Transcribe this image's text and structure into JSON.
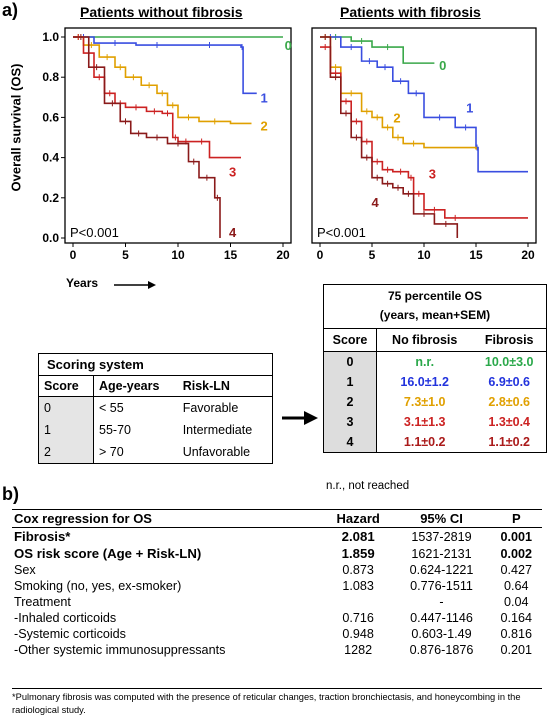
{
  "panel_a": "a)",
  "panel_b": "b)",
  "chart_data": [
    {
      "type": "line",
      "title": "Patients without fibrosis",
      "ylabel": "Overall survival (OS)",
      "xlabel": "Years",
      "xlim": [
        0,
        20
      ],
      "ylim": [
        0,
        1
      ],
      "xticks": [
        "0",
        "5",
        "10",
        "15",
        "20"
      ],
      "yticks": [
        "0.0",
        "0.2",
        "0.4",
        "0.6",
        "0.8",
        "1.0"
      ],
      "annotation": "P<0.001",
      "series": [
        {
          "name": "0",
          "color": "#3aa84a",
          "points": [
            [
              0,
              1.0
            ],
            [
              20,
              1.0
            ]
          ],
          "label_at": [
            20.5,
            0.96
          ]
        },
        {
          "name": "1",
          "color": "#3a4ee0",
          "points": [
            [
              0,
              1.0
            ],
            [
              2,
              0.97
            ],
            [
              6,
              0.96
            ],
            [
              10,
              0.96
            ],
            [
              16,
              0.95
            ],
            [
              16.2,
              0.72
            ],
            [
              17.5,
              0.72
            ]
          ],
          "label_at": [
            18.2,
            0.7
          ]
        },
        {
          "name": "2",
          "color": "#e0a000",
          "points": [
            [
              0,
              1.0
            ],
            [
              1,
              0.96
            ],
            [
              2.5,
              0.9
            ],
            [
              4,
              0.85
            ],
            [
              5,
              0.8
            ],
            [
              6.5,
              0.76
            ],
            [
              8,
              0.72
            ],
            [
              9,
              0.66
            ],
            [
              10,
              0.6
            ],
            [
              12,
              0.58
            ],
            [
              15,
              0.57
            ],
            [
              17,
              0.57
            ]
          ],
          "label_at": [
            18.2,
            0.56
          ]
        },
        {
          "name": "3",
          "color": "#cc2222",
          "points": [
            [
              0,
              1.0
            ],
            [
              1,
              0.92
            ],
            [
              2,
              0.8
            ],
            [
              3,
              0.72
            ],
            [
              4,
              0.67
            ],
            [
              5,
              0.65
            ],
            [
              7,
              0.63
            ],
            [
              8.5,
              0.62
            ],
            [
              9.5,
              0.5
            ],
            [
              10,
              0.48
            ],
            [
              11.5,
              0.48
            ],
            [
              13,
              0.4
            ],
            [
              16,
              0.4
            ]
          ],
          "label_at": [
            15.2,
            0.33
          ]
        },
        {
          "name": "4",
          "color": "#8a1a1a",
          "points": [
            [
              0,
              1.0
            ],
            [
              1.5,
              0.85
            ],
            [
              3,
              0.67
            ],
            [
              4.5,
              0.58
            ],
            [
              5.5,
              0.52
            ],
            [
              7,
              0.5
            ],
            [
              9,
              0.47
            ],
            [
              11,
              0.38
            ],
            [
              12,
              0.3
            ],
            [
              13.5,
              0.2
            ],
            [
              14,
              0.05
            ],
            [
              14,
              0.0
            ]
          ],
          "label_at": [
            15.2,
            0.03
          ]
        }
      ]
    },
    {
      "type": "line",
      "title": "Patients with fibrosis",
      "xlim": [
        0,
        20
      ],
      "ylim": [
        0,
        1
      ],
      "xticks": [
        "0",
        "5",
        "10",
        "15",
        "20"
      ],
      "annotation": "P<0.001",
      "series": [
        {
          "name": "0",
          "color": "#3aa84a",
          "points": [
            [
              0,
              1.0
            ],
            [
              3,
              0.98
            ],
            [
              5,
              0.95
            ],
            [
              8,
              0.87
            ],
            [
              11,
              0.87
            ]
          ],
          "label_at": [
            11.8,
            0.86
          ]
        },
        {
          "name": "1",
          "color": "#3a4ee0",
          "points": [
            [
              0,
              1.0
            ],
            [
              2,
              0.95
            ],
            [
              4,
              0.88
            ],
            [
              5.5,
              0.85
            ],
            [
              7,
              0.78
            ],
            [
              8.5,
              0.72
            ],
            [
              10,
              0.6
            ],
            [
              13,
              0.55
            ],
            [
              15,
              0.45
            ],
            [
              15.2,
              0.33
            ],
            [
              20,
              0.33
            ]
          ],
          "label_at": [
            14.4,
            0.65
          ]
        },
        {
          "name": "2",
          "color": "#e0a000",
          "points": [
            [
              0,
              1.0
            ],
            [
              1,
              0.85
            ],
            [
              2,
              0.72
            ],
            [
              4,
              0.63
            ],
            [
              5,
              0.6
            ],
            [
              6,
              0.55
            ],
            [
              7,
              0.5
            ],
            [
              8,
              0.47
            ],
            [
              10,
              0.45
            ],
            [
              15,
              0.44
            ]
          ],
          "label_at": [
            7.4,
            0.6
          ]
        },
        {
          "name": "3",
          "color": "#cc2222",
          "points": [
            [
              0,
              0.95
            ],
            [
              1,
              0.82
            ],
            [
              2,
              0.68
            ],
            [
              3,
              0.58
            ],
            [
              4,
              0.48
            ],
            [
              5,
              0.38
            ],
            [
              6,
              0.34
            ],
            [
              7,
              0.33
            ],
            [
              8.5,
              0.3
            ],
            [
              9,
              0.22
            ],
            [
              10,
              0.14
            ],
            [
              12,
              0.1
            ],
            [
              14,
              0.1
            ],
            [
              20,
              0.1
            ]
          ],
          "label_at": [
            10.8,
            0.32
          ]
        },
        {
          "name": "4",
          "color": "#8a1a1a",
          "points": [
            [
              0,
              1.0
            ],
            [
              1,
              0.8
            ],
            [
              2,
              0.62
            ],
            [
              3,
              0.5
            ],
            [
              4,
              0.4
            ],
            [
              5,
              0.3
            ],
            [
              6,
              0.27
            ],
            [
              7,
              0.25
            ],
            [
              8,
              0.22
            ],
            [
              9,
              0.12
            ],
            [
              11,
              0.07
            ],
            [
              13.2,
              0.04
            ],
            [
              13.2,
              0.0
            ]
          ],
          "label_at": [
            5.3,
            0.18
          ]
        }
      ]
    }
  ],
  "x_axis_arrow_label": "Years",
  "scoring": {
    "title": "Scoring system",
    "headers": [
      "Score",
      "Age-years",
      "Risk-LN"
    ],
    "rows": [
      [
        "0",
        "< 55",
        "Favorable"
      ],
      [
        "1",
        "55-70",
        "Intermediate"
      ],
      [
        "2",
        "> 70",
        "Unfavorable"
      ]
    ]
  },
  "percentile": {
    "title1": "75 percentile OS",
    "title2": "(years, mean+SEM)",
    "headers": [
      "Score",
      "No fibrosis",
      "Fibrosis"
    ],
    "rows": [
      {
        "score": "0",
        "nf": "n.r.",
        "f": "10.0±3.0",
        "nf_color": "#2aa84a",
        "f_color": "#2aa84a"
      },
      {
        "score": "1",
        "nf": "16.0±1.2",
        "f": "6.9±0.6",
        "nf_color": "#2233dd",
        "f_color": "#2233dd"
      },
      {
        "score": "2",
        "nf": "7.3±1.0",
        "f": "2.8±0.6",
        "nf_color": "#e0a000",
        "f_color": "#e0a000"
      },
      {
        "score": "3",
        "nf": "3.1±1.3",
        "f": "1.3±0.4",
        "nf_color": "#cc2222",
        "f_color": "#cc2222"
      },
      {
        "score": "4",
        "nf": "1.1±0.2",
        "f": "1.1±0.2",
        "nf_color": "#aa1a1a",
        "f_color": "#aa1a1a"
      }
    ],
    "note": "n.r., not reached"
  },
  "cox": {
    "headers": [
      "Cox regression for OS",
      "Hazard",
      "95% CI",
      "P"
    ],
    "rows": [
      {
        "label": "Fibrosis*",
        "hazard": "2.081",
        "ci": "1537-2819",
        "p": "0.001",
        "bold": true
      },
      {
        "label": "OS risk score (Age + Risk-LN)",
        "hazard": "1.859",
        "ci": "1621-2131",
        "p": "0.002",
        "bold": true
      },
      {
        "label": "Sex",
        "hazard": "0.873",
        "ci": "0.624-1221",
        "p": "0.427",
        "bold": false
      },
      {
        "label": "Smoking (no, yes, ex-smoker)",
        "hazard": "1.083",
        "ci": "0.776-1511",
        "p": "0.64",
        "bold": false
      },
      {
        "label": "Treatment",
        "hazard": "",
        "ci": "-",
        "p": "0.04",
        "bold": false
      },
      {
        "label": "-Inhaled corticoids",
        "hazard": "0.716",
        "ci": "0.447-1146",
        "p": "0.164",
        "bold": false
      },
      {
        "label": "-Systemic corticoids",
        "hazard": "0.948",
        "ci": "0.603-1.49",
        "p": "0.816",
        "bold": false
      },
      {
        "label": "-Other systemic immunosuppressants",
        "hazard": "1282",
        "ci": "0.876-1876",
        "p": "0.201",
        "bold": false
      }
    ],
    "footnote": "*Pulmonary fibrosis was computed with the presence of reticular changes, traction bronchiectasis, and honeycombing in the radiological study."
  }
}
